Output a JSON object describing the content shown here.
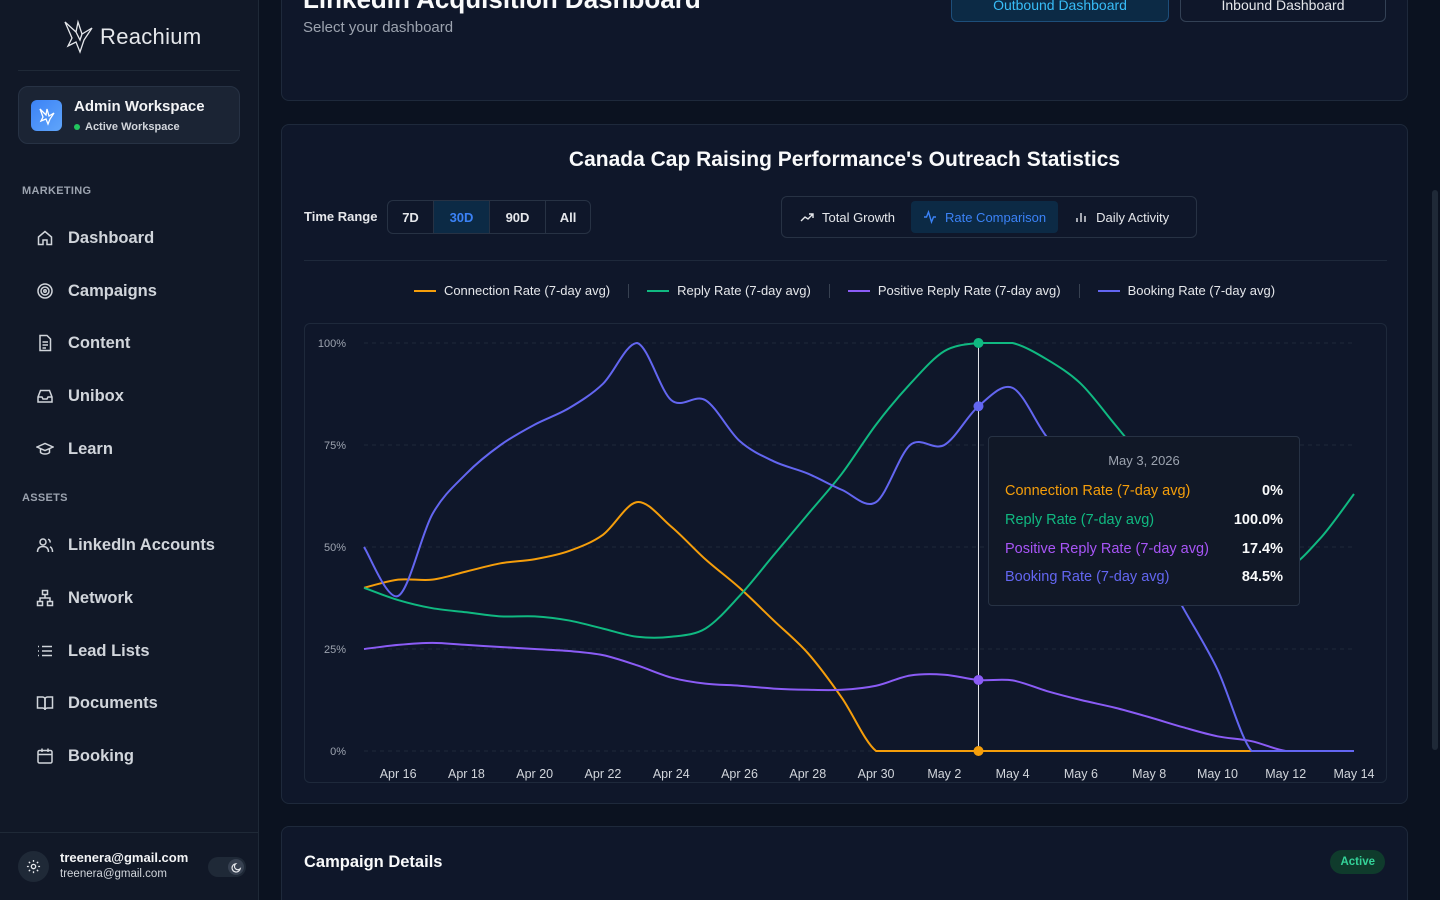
{
  "sidebar": {
    "logo_text": "Reachium",
    "workspace": {
      "name": "Admin Workspace",
      "status": "Active Workspace"
    },
    "sections": [
      {
        "label": "MARKETING"
      },
      {
        "label": "ASSETS"
      }
    ],
    "marketing_items": [
      {
        "label": "Dashboard",
        "icon": "home-icon"
      },
      {
        "label": "Campaigns",
        "icon": "target-icon"
      },
      {
        "label": "Content",
        "icon": "document-icon"
      },
      {
        "label": "Unibox",
        "icon": "inbox-icon"
      },
      {
        "label": "Learn",
        "icon": "graduation-cap-icon"
      }
    ],
    "asset_items": [
      {
        "label": "LinkedIn Accounts",
        "icon": "users-icon"
      },
      {
        "label": "Network",
        "icon": "network-icon"
      },
      {
        "label": "Lead Lists",
        "icon": "list-icon"
      },
      {
        "label": "Documents",
        "icon": "book-icon"
      },
      {
        "label": "Booking",
        "icon": "calendar-icon"
      }
    ],
    "user": {
      "email": "treenera@gmail.com",
      "sub": "treenera@gmail.com"
    }
  },
  "header": {
    "title": "LinkedIn Acquisition Dashboard",
    "subtitle": "Select your dashboard",
    "outbound_label": "Outbound Dashboard",
    "inbound_label": "Inbound Dashboard"
  },
  "chart_panel": {
    "title": "Canada Cap Raising Performance's Outreach Statistics",
    "time_range_label": "Time Range",
    "time_ranges": [
      "7D",
      "30D",
      "90D",
      "All"
    ],
    "time_range_selected": "30D",
    "views": [
      "Total Growth",
      "Rate Comparison",
      "Daily Activity"
    ],
    "view_selected": "Rate Comparison"
  },
  "chart_data": {
    "type": "line",
    "x": [
      "Apr 15",
      "Apr 16",
      "Apr 17",
      "Apr 18",
      "Apr 19",
      "Apr 20",
      "Apr 21",
      "Apr 22",
      "Apr 23",
      "Apr 24",
      "Apr 25",
      "Apr 26",
      "Apr 27",
      "Apr 28",
      "Apr 29",
      "Apr 30",
      "May 1",
      "May 2",
      "May 3",
      "May 4",
      "May 5",
      "May 6",
      "May 7",
      "May 8",
      "May 9",
      "May 10",
      "May 11",
      "May 12",
      "May 13",
      "May 14"
    ],
    "x_tick_labels": [
      "Apr 16",
      "Apr 18",
      "Apr 20",
      "Apr 22",
      "Apr 24",
      "Apr 26",
      "Apr 28",
      "Apr 30",
      "May 2",
      "May 4",
      "May 6",
      "May 8",
      "May 10",
      "May 12",
      "May 14"
    ],
    "y_tick_labels": [
      "0%",
      "25%",
      "50%",
      "75%",
      "100%"
    ],
    "ylim": [
      0,
      100
    ],
    "grid": true,
    "legend_position": "top-center",
    "series": [
      {
        "name": "Connection Rate (7-day avg)",
        "color": "#f59e0b",
        "values": [
          40,
          42,
          42,
          44,
          46,
          47,
          49,
          53,
          61,
          55,
          47,
          40,
          32,
          24,
          13,
          0,
          0,
          0,
          0,
          0,
          0,
          0,
          0,
          0,
          0,
          0,
          0,
          0,
          0,
          0
        ]
      },
      {
        "name": "Reply Rate (7-day avg)",
        "color": "#10b981",
        "values": [
          40,
          37,
          35,
          34,
          33,
          33,
          32,
          30,
          28,
          28,
          30,
          38,
          48,
          58,
          68,
          80,
          90,
          98,
          100,
          100,
          96,
          90,
          80,
          70,
          62,
          56,
          50,
          45,
          52,
          63
        ]
      },
      {
        "name": "Positive Reply Rate (7-day avg)",
        "color": "#8b5cf6",
        "values": [
          25,
          26,
          26.5,
          26,
          25.5,
          25,
          24.5,
          23.5,
          21,
          18,
          16.5,
          16,
          15.3,
          15,
          15,
          16,
          18.5,
          18.7,
          17.4,
          17.3,
          14.7,
          12.5,
          10.6,
          8.3,
          5.8,
          3.6,
          2.4,
          0,
          0,
          0
        ]
      },
      {
        "name": "Booking Rate (7-day avg)",
        "color": "#6366f1",
        "values": [
          50,
          38,
          58,
          68,
          75,
          80,
          84,
          90,
          100,
          86,
          86,
          76,
          71,
          68,
          64,
          61,
          75,
          75,
          84.5,
          89,
          77,
          68,
          60,
          50,
          35,
          20,
          0,
          0,
          0,
          0
        ]
      }
    ],
    "tooltip": {
      "date": "May 3, 2026",
      "index": 18,
      "rows": [
        {
          "name": "Connection Rate (7-day avg)",
          "value": "0%",
          "color": "#f59e0b"
        },
        {
          "name": "Reply Rate (7-day avg)",
          "value": "100.0%",
          "color": "#10b981"
        },
        {
          "name": "Positive Reply Rate (7-day avg)",
          "value": "17.4%",
          "color": "#a855f7"
        },
        {
          "name": "Booking Rate (7-day avg)",
          "value": "84.5%",
          "color": "#6366f1"
        }
      ]
    }
  },
  "details": {
    "title": "Campaign Details",
    "status": "Active"
  },
  "colors": {
    "accent": "#3b82f6",
    "background": "#0b1220",
    "card": "#0f172a",
    "success": "#34d399"
  }
}
